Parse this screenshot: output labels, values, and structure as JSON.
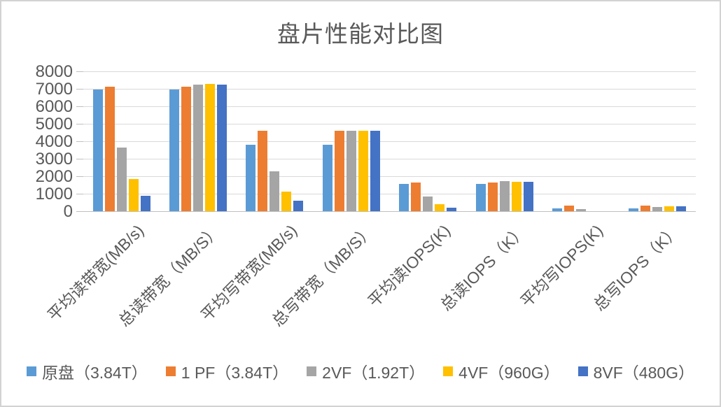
{
  "frame": {
    "background": "#ffffff",
    "border_color": "#d2d2d2"
  },
  "chart_data": {
    "type": "bar",
    "title": "盘片性能对比图",
    "categories": [
      "平均读带宽(MB/s)",
      "总读带宽（MB/S）",
      "平均写带宽(MB/s)",
      "总写带宽（MB/S）",
      "平均读IOPS(K)",
      "总读IOPS（K）",
      "平均写IOPS(K)",
      "总写IOPS（K）"
    ],
    "series": [
      {
        "name": "原盘（3.84T）",
        "color": "#5B9BD5",
        "values": [
          6950,
          6950,
          3780,
          3780,
          1570,
          1570,
          150,
          150
        ]
      },
      {
        "name": "1 PF（3.84T）",
        "color": "#ED7D31",
        "values": [
          7100,
          7100,
          4600,
          4600,
          1640,
          1640,
          300,
          300
        ]
      },
      {
        "name": "2VF（1.92T）",
        "color": "#A5A5A5",
        "values": [
          3650,
          7240,
          2290,
          4600,
          840,
          1700,
          110,
          250
        ]
      },
      {
        "name": "4VF（960G）",
        "color": "#FFC000",
        "values": [
          1840,
          7290,
          1140,
          4580,
          400,
          1690,
          0,
          290
        ]
      },
      {
        "name": "8VF（480G）",
        "color": "#4472C4",
        "values": [
          890,
          7250,
          590,
          4610,
          190,
          1680,
          0,
          290
        ]
      }
    ],
    "xlabel": "",
    "ylabel": "",
    "ylim": [
      0,
      8000
    ],
    "y_step": 1000,
    "y_tick_labels": [
      "0",
      "1000",
      "2000",
      "3000",
      "4000",
      "5000",
      "6000",
      "7000",
      "8000"
    ],
    "grid": true,
    "legend_position": "bottom",
    "text_color": "#595959",
    "gridline_color": "#d9d9d9",
    "axis_color": "#bfbfbf"
  }
}
